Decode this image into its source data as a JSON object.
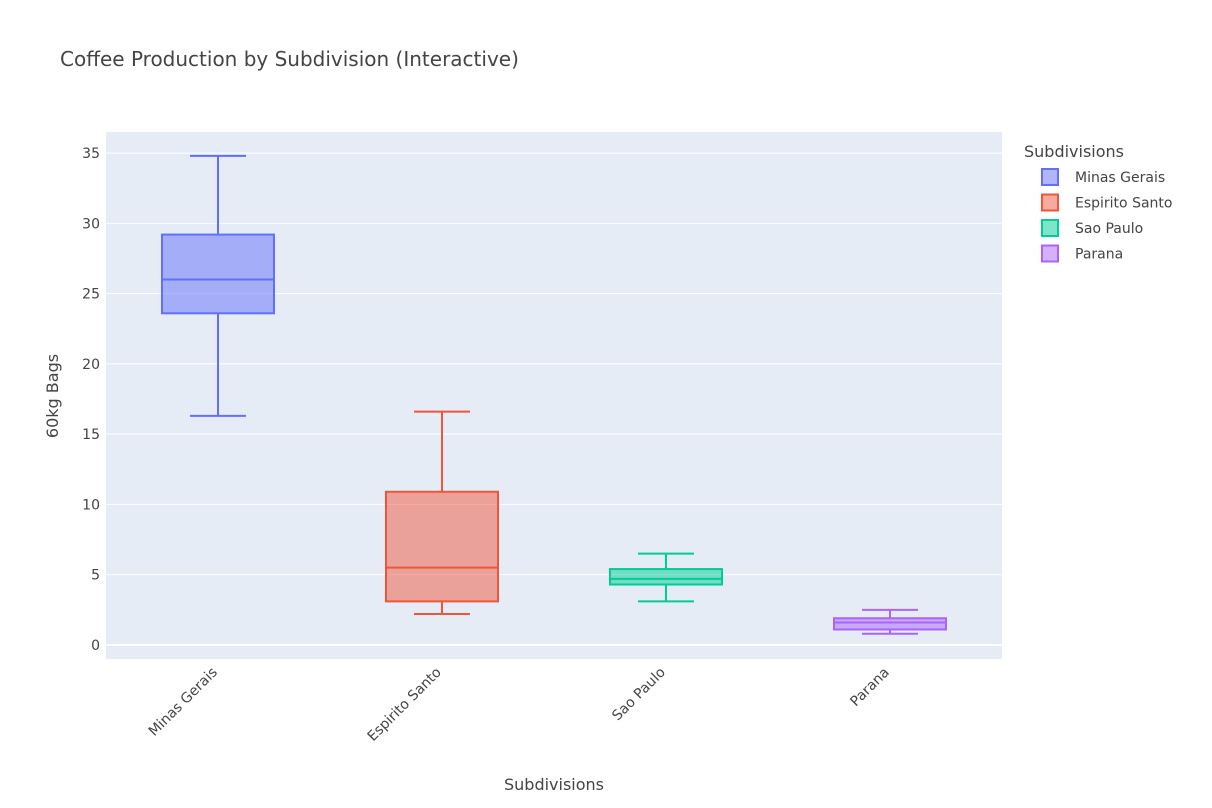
{
  "chart_data": {
    "type": "box",
    "title": "Coffee Production by Subdivision (Interactive)",
    "xlabel": "Subdivisions",
    "ylabel": "60kg Bags",
    "ylim": [
      -1,
      36.5
    ],
    "yticks": [
      0,
      5,
      10,
      15,
      20,
      25,
      30,
      35
    ],
    "grid": true,
    "legend": {
      "title": "Subdivisions",
      "position": "top-right"
    },
    "categories": [
      "Minas Gerais",
      "Espirito Santo",
      "Sao Paulo",
      "Parana"
    ],
    "series": [
      {
        "name": "Minas Gerais",
        "color": "#636efa",
        "min": 16.3,
        "q1": 23.6,
        "median": 26.0,
        "q3": 29.2,
        "max": 34.8
      },
      {
        "name": "Espirito Santo",
        "color": "#ef553b",
        "min": 2.2,
        "q1": 3.1,
        "median": 5.5,
        "q3": 10.9,
        "max": 16.6
      },
      {
        "name": "Sao Paulo",
        "color": "#00cc96",
        "min": 3.1,
        "q1": 4.3,
        "median": 4.7,
        "q3": 5.4,
        "max": 6.5
      },
      {
        "name": "Parana",
        "color": "#ab63fa",
        "min": 0.8,
        "q1": 1.1,
        "median": 1.6,
        "q3": 1.9,
        "max": 2.5
      }
    ]
  }
}
